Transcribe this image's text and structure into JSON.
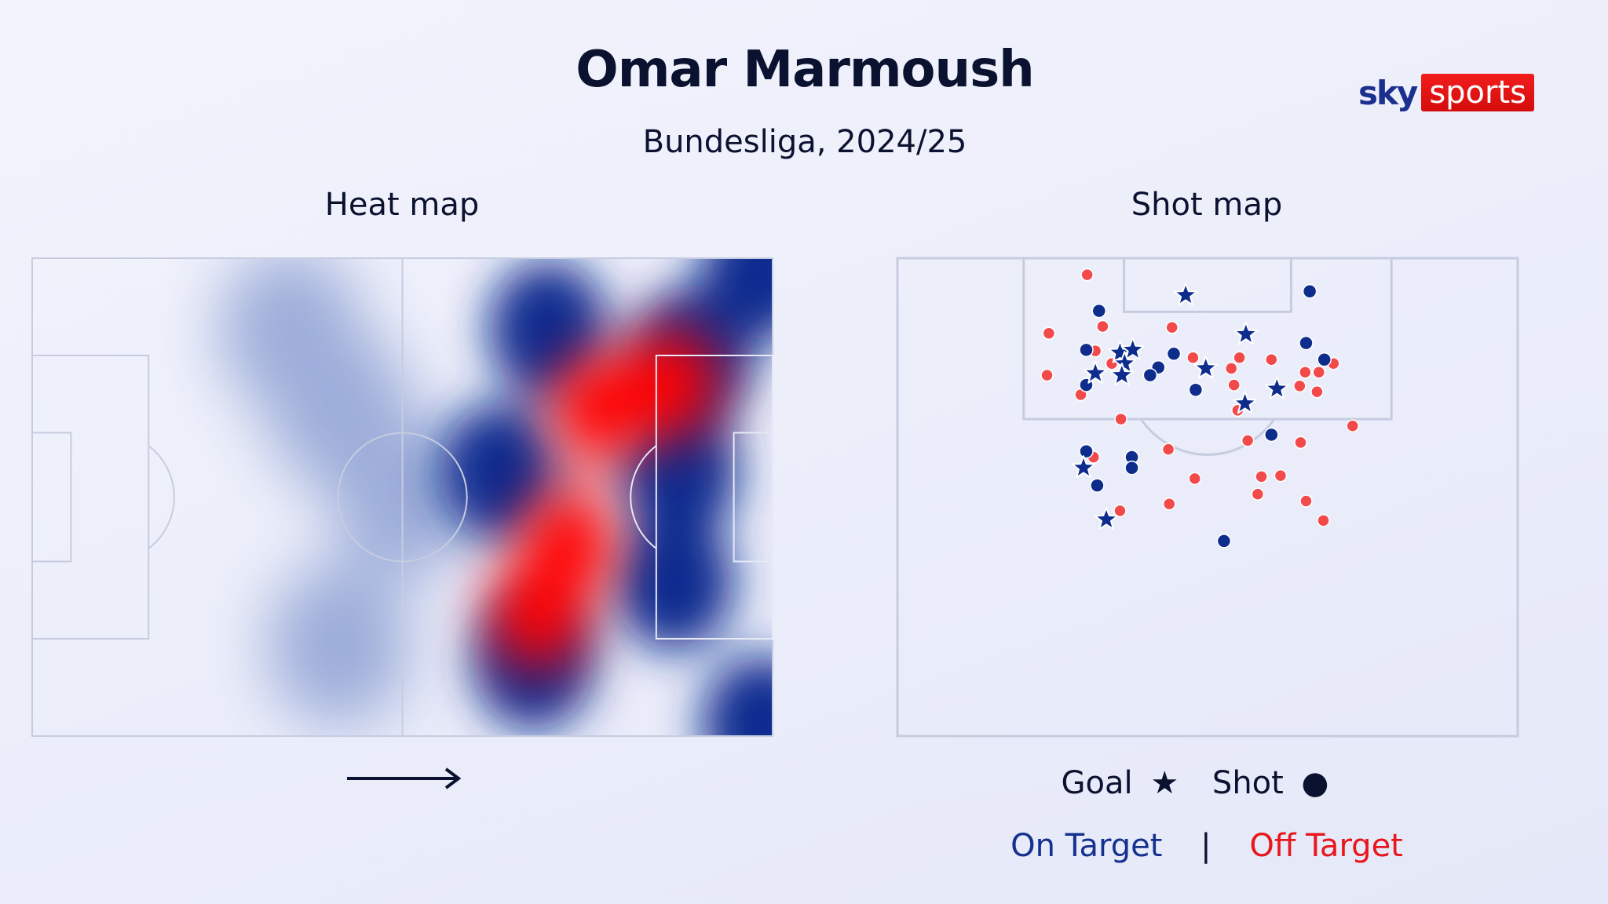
{
  "title": "Omar Marmoush",
  "subtitle": "Bundesliga, 2024/25",
  "logo": {
    "brand": "sky sports",
    "part1": "sky",
    "part2": "sports"
  },
  "colors": {
    "on_target": "#0d2c8c",
    "off_target": "#f24a4a",
    "heat_high": "#ff0000",
    "heat_mid": "#0b2a8f",
    "pitch_line": "#c6cce0"
  },
  "heat_map": {
    "label": "Heat map",
    "direction_icon": "arrow-right-icon"
  },
  "shot_map": {
    "label": "Shot map"
  },
  "legend": {
    "goal": "Goal",
    "goal_symbol": "★",
    "shot": "Shot",
    "shot_symbol": "●",
    "on_target": "On Target",
    "separator": "|",
    "off_target": "Off Target"
  },
  "chart_data": [
    {
      "type": "heatmap",
      "title": "Heat map",
      "units": "metres (pitch 105 x 68, attacking left to right)",
      "hotspots": [
        {
          "x": 36.6,
          "y": 10.2,
          "level": "low"
        },
        {
          "x": 43.5,
          "y": 21.4,
          "level": "low"
        },
        {
          "x": 52.5,
          "y": 34.0,
          "level": "low"
        },
        {
          "x": 43.5,
          "y": 55.0,
          "level": "low"
        },
        {
          "x": 103.5,
          "y": 1.7,
          "level": "mid"
        },
        {
          "x": 103.5,
          "y": 66.3,
          "level": "mid"
        },
        {
          "x": 73.2,
          "y": 10.2,
          "level": "mid"
        },
        {
          "x": 93.8,
          "y": 13.8,
          "level": "mid"
        },
        {
          "x": 91.7,
          "y": 30.4,
          "level": "mid"
        },
        {
          "x": 91.0,
          "y": 46.1,
          "level": "mid"
        },
        {
          "x": 71.1,
          "y": 57.3,
          "level": "mid"
        },
        {
          "x": 66.3,
          "y": 30.4,
          "level": "mid"
        },
        {
          "x": 80.4,
          "y": 21.4,
          "level": "high"
        },
        {
          "x": 90.4,
          "y": 17.8,
          "level": "high"
        },
        {
          "x": 75.9,
          "y": 40.7,
          "level": "high"
        },
        {
          "x": 71.8,
          "y": 50.6,
          "level": "high"
        }
      ]
    },
    {
      "type": "scatter",
      "title": "Shot map",
      "units": "metres (x across pitch 0-68, y distance from goal line)",
      "xlim": [
        0,
        68
      ],
      "ylim": [
        0,
        49
      ],
      "off_target_shots": [
        [
          20.8,
          1.7
        ],
        [
          22.5,
          7.0
        ],
        [
          16.6,
          7.7
        ],
        [
          30.1,
          7.1
        ],
        [
          21.7,
          9.5
        ],
        [
          23.5,
          10.8
        ],
        [
          16.4,
          12.0
        ],
        [
          20.1,
          14.0
        ],
        [
          32.4,
          10.2
        ],
        [
          37.5,
          10.2
        ],
        [
          36.6,
          11.3
        ],
        [
          36.9,
          13.0
        ],
        [
          41.0,
          10.4
        ],
        [
          47.8,
          10.8
        ],
        [
          44.7,
          11.7
        ],
        [
          46.2,
          11.7
        ],
        [
          44.1,
          13.1
        ],
        [
          46.0,
          13.7
        ],
        [
          37.3,
          15.6
        ],
        [
          24.5,
          16.5
        ],
        [
          49.9,
          17.2
        ],
        [
          38.4,
          18.7
        ],
        [
          44.2,
          18.9
        ],
        [
          29.7,
          19.6
        ],
        [
          21.5,
          20.4
        ],
        [
          32.6,
          22.6
        ],
        [
          39.9,
          22.4
        ],
        [
          42.0,
          22.3
        ],
        [
          39.5,
          24.2
        ],
        [
          44.8,
          24.9
        ],
        [
          29.8,
          25.2
        ],
        [
          24.4,
          25.9
        ],
        [
          46.7,
          26.9
        ]
      ],
      "on_target_shots": [
        [
          22.1,
          5.4
        ],
        [
          45.2,
          3.4
        ],
        [
          20.7,
          9.4
        ],
        [
          30.3,
          9.8
        ],
        [
          28.6,
          11.2
        ],
        [
          27.7,
          12.0
        ],
        [
          20.7,
          13.0
        ],
        [
          32.7,
          13.5
        ],
        [
          44.8,
          8.7
        ],
        [
          46.8,
          10.4
        ],
        [
          41.0,
          18.1
        ],
        [
          20.7,
          19.8
        ],
        [
          25.7,
          20.4
        ],
        [
          25.7,
          21.5
        ],
        [
          21.9,
          23.3
        ],
        [
          35.8,
          29.0
        ]
      ],
      "goals": [
        [
          31.6,
          3.8
        ],
        [
          38.2,
          7.8
        ],
        [
          24.4,
          9.7
        ],
        [
          25.8,
          9.4
        ],
        [
          24.9,
          10.8
        ],
        [
          24.6,
          12.0
        ],
        [
          21.7,
          11.8
        ],
        [
          33.8,
          11.3
        ],
        [
          41.6,
          13.4
        ],
        [
          38.1,
          14.9
        ],
        [
          20.4,
          21.5
        ],
        [
          22.9,
          26.8
        ]
      ]
    }
  ]
}
